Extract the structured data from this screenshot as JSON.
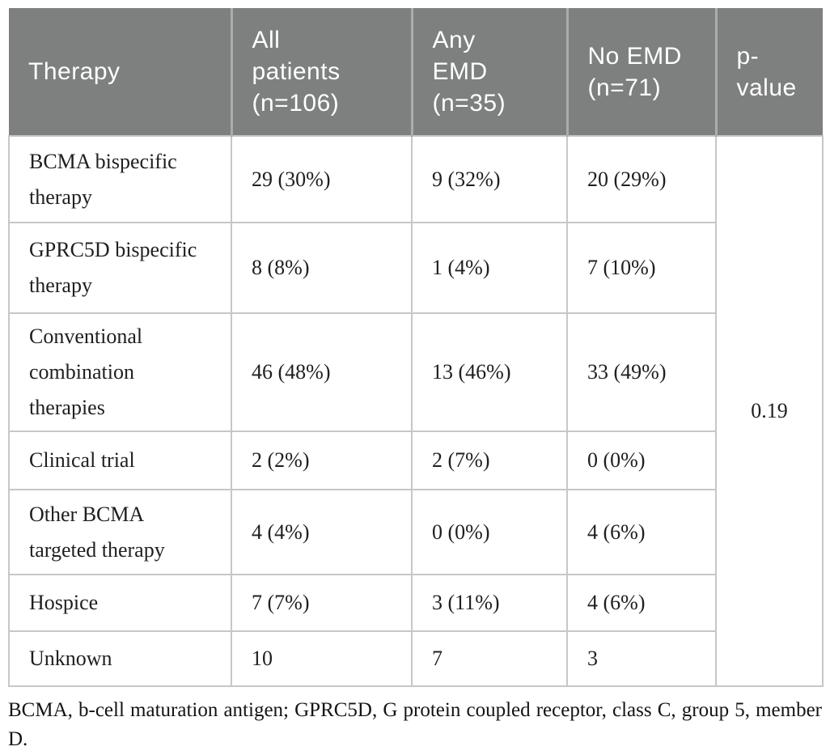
{
  "table": {
    "header": {
      "therapy": "Therapy",
      "all_patients": "All\npatients\n(n=106)",
      "any_emd": "Any\nEMD\n(n=35)",
      "no_emd": "No EMD\n(n=71)",
      "p_value": "p-\nvalue"
    },
    "rows": [
      {
        "therapy": "BCMA bispecific\ntherapy",
        "all_patients": "29 (30%)",
        "any_emd": "9 (32%)",
        "no_emd": "20 (29%)"
      },
      {
        "therapy": "GPRC5D bispecific\ntherapy",
        "all_patients": "8 (8%)",
        "any_emd": "1 (4%)",
        "no_emd": "7 (10%)"
      },
      {
        "therapy": "Conventional\ncombination\ntherapies",
        "all_patients": "46 (48%)",
        "any_emd": "13 (46%)",
        "no_emd": "33 (49%)"
      },
      {
        "therapy": "Clinical trial",
        "all_patients": "2 (2%)",
        "any_emd": "2 (7%)",
        "no_emd": "0 (0%)"
      },
      {
        "therapy": "Other BCMA\ntargeted therapy",
        "all_patients": "4 (4%)",
        "any_emd": "0 (0%)",
        "no_emd": "4 (6%)"
      },
      {
        "therapy": "Hospice",
        "all_patients": "7 (7%)",
        "any_emd": "3 (11%)",
        "no_emd": "4 (6%)"
      },
      {
        "therapy": "Unknown",
        "all_patients": "10",
        "any_emd": "7",
        "no_emd": "3"
      }
    ],
    "p_value": "0.19"
  },
  "footnote": "BCMA, b-cell maturation antigen; GPRC5D, G protein coupled receptor, class C, group 5, member D.",
  "colors": {
    "header_bg": "#7e807f",
    "header_text": "#ffffff",
    "header_divider": "#abadac",
    "body_border": "#c7c7c7",
    "body_text": "#1f1f1f"
  }
}
